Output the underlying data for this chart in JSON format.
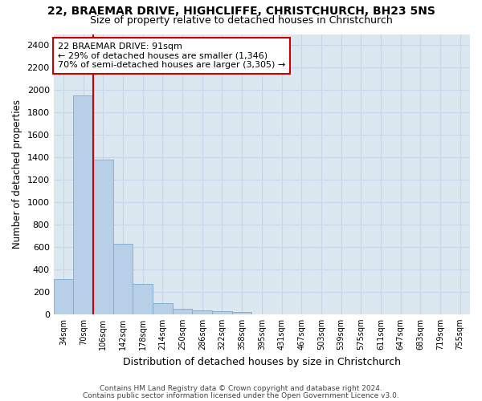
{
  "title1": "22, BRAEMAR DRIVE, HIGHCLIFFE, CHRISTCHURCH, BH23 5NS",
  "title2": "Size of property relative to detached houses in Christchurch",
  "xlabel": "Distribution of detached houses by size in Christchurch",
  "ylabel": "Number of detached properties",
  "footnote1": "Contains HM Land Registry data © Crown copyright and database right 2024.",
  "footnote2": "Contains public sector information licensed under the Open Government Licence v3.0.",
  "bar_labels": [
    "34sqm",
    "70sqm",
    "106sqm",
    "142sqm",
    "178sqm",
    "214sqm",
    "250sqm",
    "286sqm",
    "322sqm",
    "358sqm",
    "395sqm",
    "431sqm",
    "467sqm",
    "503sqm",
    "539sqm",
    "575sqm",
    "611sqm",
    "647sqm",
    "683sqm",
    "719sqm",
    "755sqm"
  ],
  "bar_values": [
    315,
    1950,
    1380,
    630,
    270,
    100,
    47,
    32,
    27,
    20,
    0,
    0,
    0,
    0,
    0,
    0,
    0,
    0,
    0,
    0,
    0
  ],
  "bar_color": "#b8cfe8",
  "bar_edge_color": "#7aaad0",
  "vline_color": "#cc0000",
  "annotation_line1": "22 BRAEMAR DRIVE: 91sqm",
  "annotation_line2": "← 29% of detached houses are smaller (1,346)",
  "annotation_line3": "70% of semi-detached houses are larger (3,305) →",
  "annotation_box_color": "#cc0000",
  "ylim": [
    0,
    2500
  ],
  "yticks": [
    0,
    200,
    400,
    600,
    800,
    1000,
    1200,
    1400,
    1600,
    1800,
    2000,
    2200,
    2400
  ],
  "grid_color": "#c8d4e8",
  "bg_color": "#dce8f0",
  "title_fontsize": 10,
  "subtitle_fontsize": 9,
  "footnote_fontsize": 6.5
}
